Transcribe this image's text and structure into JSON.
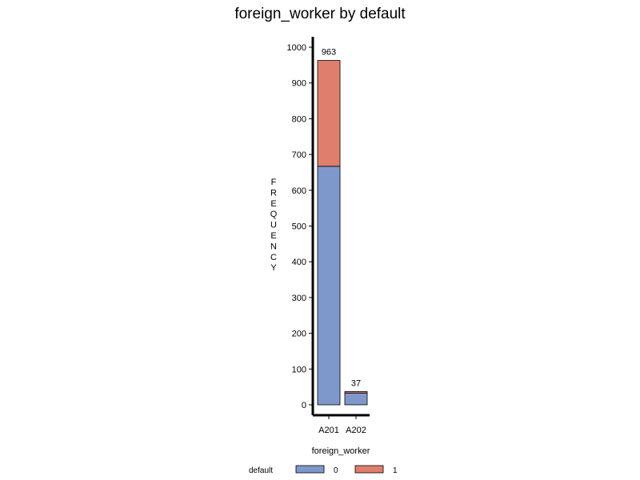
{
  "chart_data": {
    "type": "bar",
    "stacked": true,
    "title": "foreign_worker by default",
    "xlabel": "foreign_worker",
    "ylabel": "FREQUENCY",
    "categories": [
      "A201",
      "A202"
    ],
    "series": [
      {
        "name": "0",
        "values": [
          667,
          33
        ],
        "color": "#7f98cc"
      },
      {
        "name": "1",
        "values": [
          296,
          4
        ],
        "color": "#e07e6e"
      }
    ],
    "totals": [
      963,
      37
    ],
    "ylim": [
      0,
      1000
    ],
    "yticks": [
      0,
      100,
      200,
      300,
      400,
      500,
      600,
      700,
      800,
      900,
      1000
    ],
    "legend": {
      "title": "default",
      "position": "bottom"
    },
    "grid": false
  }
}
